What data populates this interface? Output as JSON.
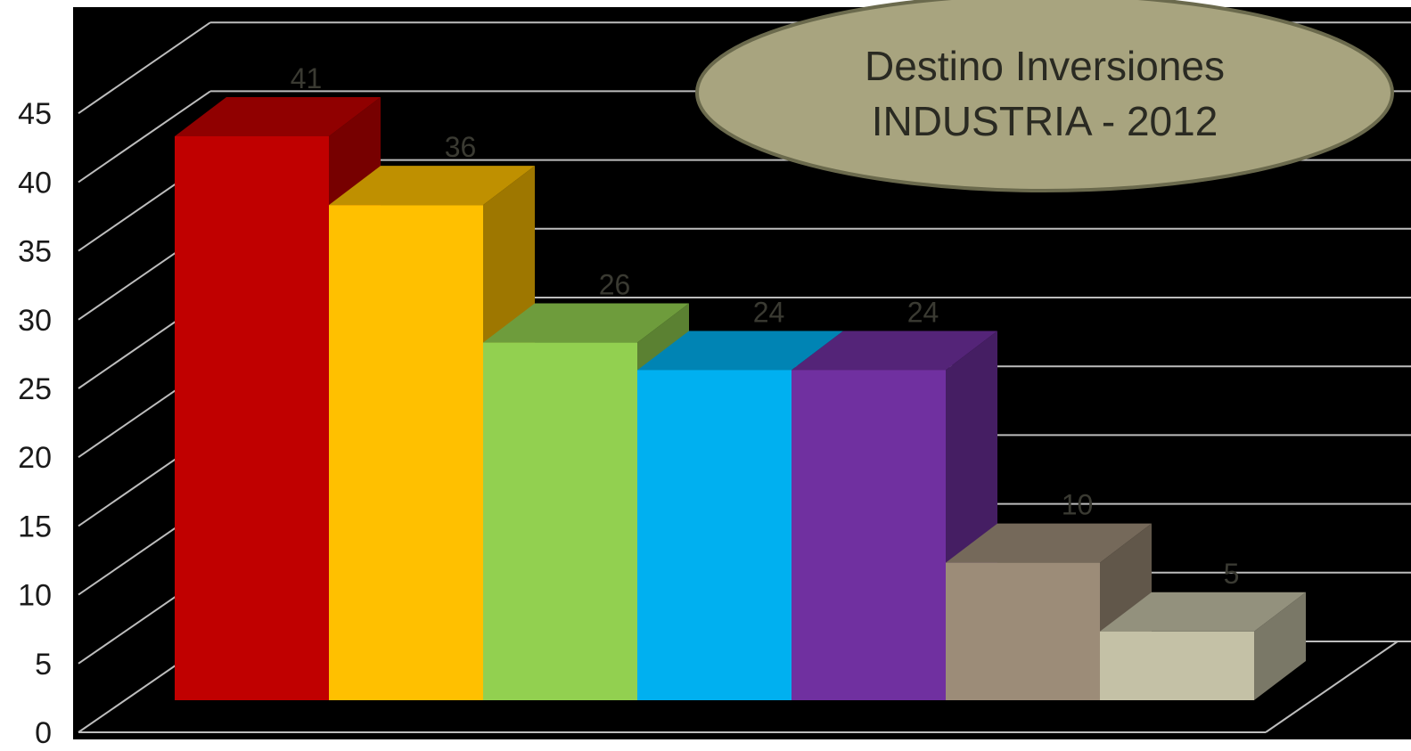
{
  "chart_data": {
    "type": "bar",
    "style": "3d-column",
    "title_lines": [
      "Destino Inversiones",
      "INDUSTRIA - 2012"
    ],
    "title_shape_color": "#a8a47f",
    "background_color": "#000000",
    "gridline_color": "#bdbdbd",
    "ylim": [
      0,
      45
    ],
    "ystep": 5,
    "yticks": [
      "0",
      "5",
      "10",
      "15",
      "20",
      "25",
      "30",
      "35",
      "40",
      "45"
    ],
    "grid": true,
    "data_labels": true,
    "values": [
      41,
      36,
      26,
      24,
      24,
      10,
      5
    ],
    "colors": [
      "#c00000",
      "#ffc000",
      "#92d050",
      "#00b0f0",
      "#7030a0",
      "#9c8c78",
      "#c4c1a6"
    ]
  }
}
